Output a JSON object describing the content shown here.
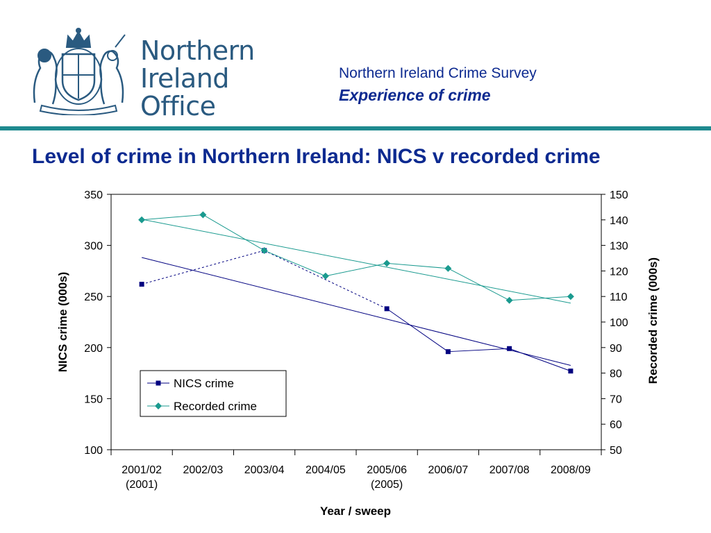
{
  "header": {
    "org_name_lines": [
      "Northern",
      "Ireland",
      "Office"
    ],
    "survey_title": "Northern Ireland Crime Survey",
    "section_title": "Experience of crime"
  },
  "slide_title": "Level of crime in Northern Ireland: NICS v recorded crime",
  "colors": {
    "brand_blue": "#2a5a80",
    "title_blue": "#0d2a90",
    "divider_teal": "#1f8a8f",
    "nics_series": "#000080",
    "recorded_series": "#1a9a8f"
  },
  "chart_data": {
    "type": "line",
    "categories": [
      "2001/02\n(2001)",
      "2002/03",
      "2003/04",
      "2004/05",
      "2005/06\n(2005)",
      "2006/07",
      "2007/08",
      "2008/09"
    ],
    "xlabel": "Year / sweep",
    "ylabel": "NICS crime (000s)",
    "y2label": "Recorded crime (000s)",
    "ylim": [
      100,
      350
    ],
    "y2lim": [
      50,
      150
    ],
    "yticks": [
      100,
      150,
      200,
      250,
      300,
      350
    ],
    "y2ticks": [
      50,
      60,
      70,
      80,
      90,
      100,
      110,
      120,
      130,
      140,
      150
    ],
    "grid": false,
    "legend": "lower-left",
    "series": [
      {
        "name": "NICS crime",
        "axis": "left",
        "marker": "square",
        "values": [
          262,
          null,
          295,
          null,
          238,
          196,
          199,
          177
        ],
        "trendline": true
      },
      {
        "name": "Recorded crime",
        "axis": "right",
        "marker": "diamond",
        "values": [
          140,
          142,
          128,
          118,
          123,
          121,
          108.5,
          110
        ],
        "trendline": true
      }
    ]
  }
}
